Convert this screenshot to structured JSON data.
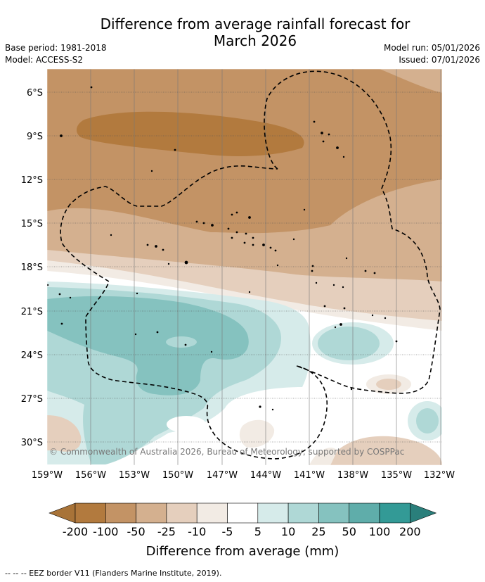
{
  "title_line1": "Difference from average rainfall forecast for",
  "title_line2": "March 2026",
  "base_period": "Base period: 1981-2018",
  "model": "Model: ACCESS-S2",
  "model_run": "Model run: 05/01/2026",
  "issued": "Issued: 07/01/2026",
  "copyright": "© Commonwealth of Australia 2026, Bureau of Meteorology, supported by COSPPac",
  "lat_labels": [
    "6°S",
    "9°S",
    "12°S",
    "15°S",
    "18°S",
    "21°S",
    "24°S",
    "27°S",
    "30°S"
  ],
  "lon_labels": [
    "159°W",
    "156°W",
    "153°W",
    "150°W",
    "147°W",
    "144°W",
    "141°W",
    "138°W",
    "135°W",
    "132°W"
  ],
  "colorbar": {
    "ticks": [
      "-200",
      "-100",
      "-50",
      "-25",
      "-10",
      "-5",
      "5",
      "10",
      "25",
      "50",
      "100",
      "200"
    ],
    "colors": [
      "#a87338",
      "#b27a3e",
      "#c39365",
      "#d4b08f",
      "#e5cfbd",
      "#f2ebe4",
      "#ffffff",
      "#d6ebea",
      "#afd8d6",
      "#85c2bf",
      "#5fadaa",
      "#339a96",
      "#2a7f7b"
    ],
    "label": "Difference from average (mm)"
  },
  "legend": "-- -- -- EEZ border V11 (Flanders Marine Institute, 2019)."
}
